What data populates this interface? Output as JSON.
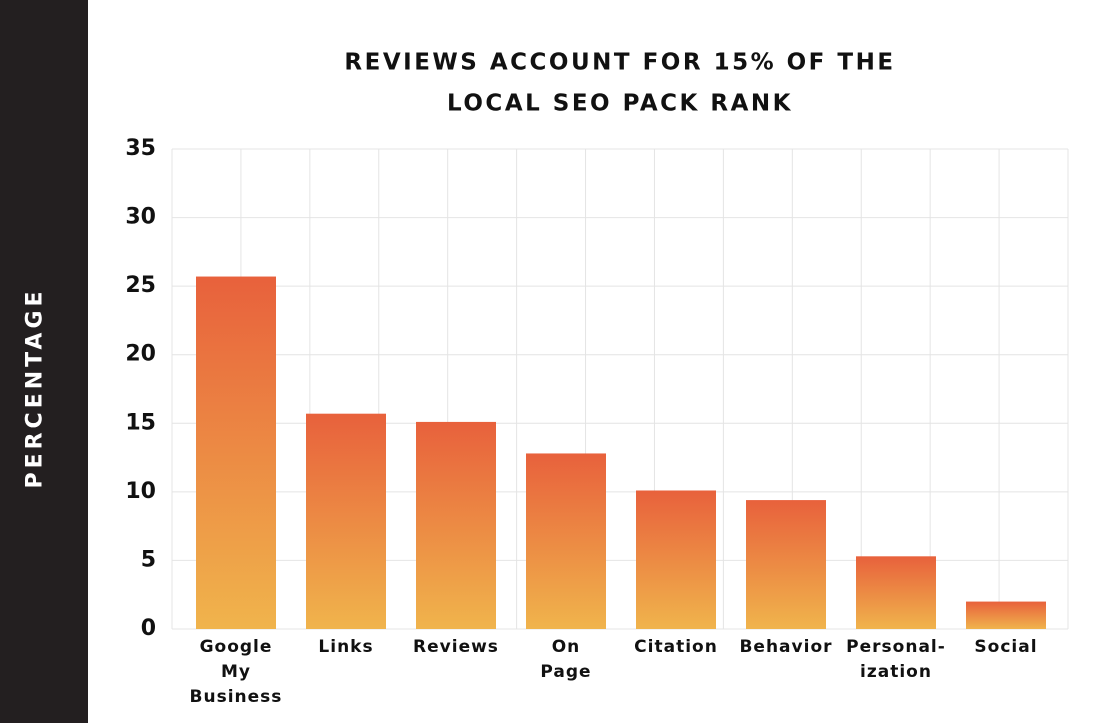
{
  "chart_data": {
    "type": "bar",
    "title": [
      "REVIEWS ACCOUNT FOR 15% OF THE",
      "LOCAL SEO PACK RANK"
    ],
    "y_label": "PERCENTAGE",
    "categories": [
      "Google\nMy\nBusiness",
      "Links",
      "Reviews",
      "On\nPage",
      "Citation",
      "Behavior",
      "Personal-\nization",
      "Social"
    ],
    "values": [
      25.7,
      15.7,
      15.1,
      12.8,
      10.1,
      9.4,
      5.3,
      2.0
    ],
    "gradient": [
      "#e8613c",
      "#f0b44c"
    ],
    "ylim": [
      0,
      35
    ],
    "yticks": [
      0,
      5,
      10,
      15,
      20,
      25,
      30,
      35
    ],
    "grid": true
  }
}
